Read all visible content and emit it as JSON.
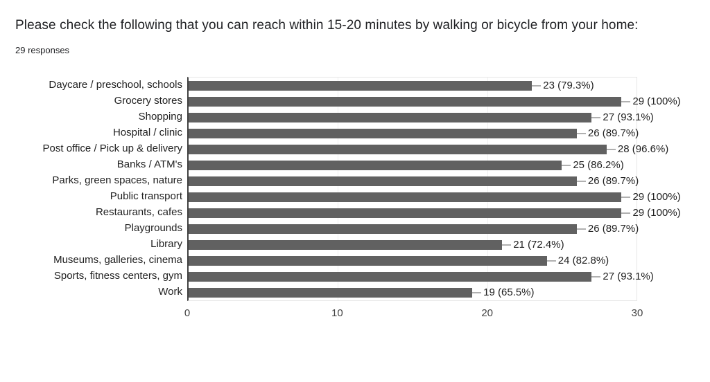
{
  "header": {
    "title": "Please check the following that you can reach within 15-20 minutes by walking or bicycle from your home:",
    "responses": "29 responses"
  },
  "chart_data": {
    "type": "bar",
    "orientation": "horizontal",
    "title": "Please check the following that you can reach within 15-20 minutes by walking or bicycle from your home:",
    "subtitle": "29 responses",
    "total_responses": 29,
    "categories": [
      "Daycare / preschool, schools",
      "Grocery stores",
      "Shopping",
      "Hospital / clinic",
      "Post office / Pick up & delivery",
      "Banks / ATM's",
      "Parks, green spaces, nature",
      "Public transport",
      "Restaurants, cafes",
      "Playgrounds",
      "Library",
      "Museums, galleries, cinema",
      "Sports, fitness centers, gym",
      "Work"
    ],
    "values": [
      23,
      29,
      27,
      26,
      28,
      25,
      26,
      29,
      29,
      26,
      21,
      24,
      27,
      19
    ],
    "percentages": [
      79.3,
      100,
      93.1,
      89.7,
      96.6,
      86.2,
      89.7,
      100,
      100,
      89.7,
      72.4,
      82.8,
      93.1,
      65.5
    ],
    "labels": [
      "23 (79.3%)",
      "29 (100%)",
      "27 (93.1%)",
      "26 (89.7%)",
      "28 (96.6%)",
      "25 (86.2%)",
      "26 (89.7%)",
      "29 (100%)",
      "29 (100%)",
      "26 (89.7%)",
      "21 (72.4%)",
      "24 (82.8%)",
      "27 (93.1%)",
      "19 (65.5%)"
    ],
    "xticks": [
      0,
      10,
      20,
      30
    ],
    "xlim": [
      0,
      30
    ],
    "grid": true,
    "legend": "none",
    "colors": {
      "bar": "#616161",
      "leader_line": "#b0b0b0",
      "gridline": "#f0f0f0",
      "plot_border": "#e6e6e6",
      "zero_axis": "#424242",
      "text": "#212121"
    }
  }
}
